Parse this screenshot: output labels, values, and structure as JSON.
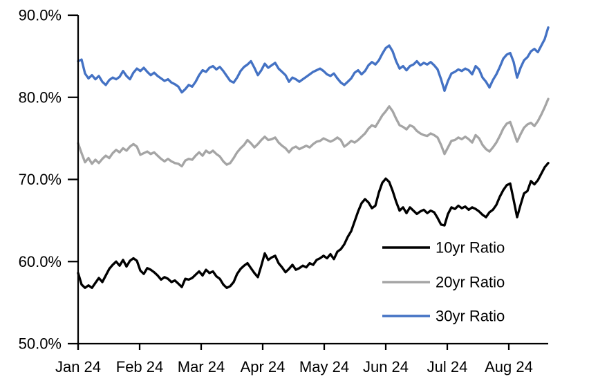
{
  "chart_data": {
    "type": "line",
    "title": "",
    "grid": false,
    "x_axis": {
      "tick_labels": [
        "Jan 24",
        "Feb 24",
        "Mar 24",
        "Apr 24",
        "May 24",
        "Jun 24",
        "Jul 24",
        "Aug 24"
      ]
    },
    "y_axis": {
      "tick_labels": [
        "90.0%",
        "80.0%",
        "70.0%",
        "60.0%",
        "50.0%"
      ],
      "tick_values": [
        90,
        80,
        70,
        60,
        50
      ],
      "range": [
        50,
        90
      ],
      "unit": "percent"
    },
    "legend": {
      "position": "inside-lower-right"
    },
    "sampling_note": "137 evenly spaced observations spanning Jan 2024 through late Aug 2024",
    "series": [
      {
        "name": "10yr Ratio",
        "color": "#000000",
        "values": [
          58.6,
          57.2,
          56.8,
          57.1,
          56.8,
          57.4,
          58.0,
          57.5,
          58.3,
          59.1,
          59.6,
          60.0,
          59.5,
          60.2,
          59.4,
          60.1,
          60.4,
          60.1,
          58.9,
          58.5,
          59.2,
          59.0,
          58.7,
          58.3,
          57.8,
          58.1,
          57.9,
          57.5,
          57.7,
          57.3,
          56.9,
          57.9,
          57.8,
          58.0,
          58.4,
          58.8,
          58.3,
          59.0,
          58.6,
          58.8,
          58.2,
          57.9,
          57.2,
          56.8,
          57.0,
          57.5,
          58.5,
          59.1,
          59.5,
          59.8,
          59.2,
          58.6,
          58.1,
          59.5,
          61.0,
          60.2,
          60.5,
          60.7,
          59.8,
          59.3,
          58.7,
          59.1,
          59.6,
          59.0,
          59.2,
          59.5,
          59.3,
          59.8,
          59.6,
          60.2,
          60.4,
          60.7,
          60.4,
          60.9,
          60.3,
          61.2,
          61.5,
          62.1,
          63.0,
          63.7,
          64.9,
          66.1,
          67.1,
          67.6,
          67.2,
          66.5,
          66.8,
          68.4,
          69.6,
          70.1,
          69.7,
          68.6,
          67.3,
          66.2,
          66.6,
          65.9,
          66.6,
          66.2,
          65.8,
          66.1,
          66.3,
          65.9,
          66.2,
          66.0,
          65.3,
          64.5,
          64.4,
          65.8,
          66.6,
          66.4,
          66.8,
          66.5,
          66.7,
          66.3,
          66.6,
          66.4,
          66.1,
          65.7,
          65.4,
          66.0,
          66.3,
          66.9,
          67.9,
          68.7,
          69.3,
          69.5,
          67.5,
          65.4,
          66.9,
          68.3,
          68.6,
          69.8,
          69.4,
          69.9,
          70.7,
          71.5,
          72.0
        ]
      },
      {
        "name": "20yr Ratio",
        "color": "#A5A5A5",
        "values": [
          74.4,
          73.2,
          72.1,
          72.6,
          71.9,
          72.4,
          72.0,
          72.5,
          72.9,
          72.6,
          73.2,
          73.6,
          73.3,
          73.8,
          73.5,
          74.0,
          74.3,
          74.0,
          73.0,
          73.2,
          73.4,
          73.1,
          73.3,
          72.9,
          72.5,
          72.2,
          72.5,
          72.2,
          72.0,
          71.9,
          71.6,
          72.3,
          72.5,
          72.4,
          72.9,
          73.3,
          72.9,
          73.5,
          73.2,
          73.5,
          73.1,
          72.8,
          72.2,
          71.8,
          72.0,
          72.6,
          73.3,
          73.8,
          74.2,
          74.8,
          74.4,
          73.9,
          74.3,
          74.8,
          75.2,
          74.8,
          74.9,
          75.1,
          74.5,
          74.1,
          73.8,
          73.3,
          73.8,
          74.0,
          73.7,
          73.9,
          74.1,
          73.9,
          74.3,
          74.6,
          74.7,
          75.0,
          74.8,
          74.6,
          74.8,
          75.1,
          74.8,
          74.0,
          74.3,
          74.7,
          74.5,
          74.8,
          75.2,
          75.6,
          76.2,
          76.6,
          76.4,
          77.1,
          77.8,
          78.3,
          78.9,
          78.3,
          77.4,
          76.6,
          76.4,
          76.1,
          76.6,
          76.4,
          75.9,
          75.6,
          75.4,
          75.3,
          75.6,
          75.4,
          75.1,
          74.2,
          73.1,
          73.9,
          74.7,
          74.8,
          75.1,
          74.9,
          75.2,
          74.9,
          74.5,
          75.4,
          75.0,
          74.2,
          73.7,
          73.4,
          73.9,
          74.5,
          75.3,
          76.2,
          76.8,
          77.0,
          75.8,
          74.6,
          75.5,
          76.3,
          76.7,
          76.9,
          76.5,
          77.1,
          77.9,
          78.8,
          79.8
        ]
      },
      {
        "name": "30yr Ratio",
        "color": "#4472C4",
        "values": [
          84.4,
          84.6,
          82.9,
          82.3,
          82.7,
          82.2,
          82.6,
          81.9,
          81.5,
          82.1,
          82.4,
          82.2,
          82.5,
          83.2,
          82.6,
          82.2,
          83.0,
          83.5,
          83.2,
          83.6,
          83.1,
          82.7,
          83.0,
          82.6,
          82.3,
          82.0,
          82.2,
          81.8,
          81.6,
          81.3,
          80.6,
          81.0,
          81.5,
          81.3,
          81.9,
          82.7,
          83.3,
          83.1,
          83.6,
          83.8,
          83.4,
          83.7,
          83.2,
          82.6,
          82.0,
          81.8,
          82.4,
          83.2,
          83.7,
          84.0,
          84.4,
          83.6,
          82.7,
          83.3,
          84.1,
          83.6,
          83.9,
          84.2,
          83.5,
          83.1,
          82.7,
          81.9,
          82.4,
          82.2,
          81.9,
          82.2,
          82.5,
          82.8,
          83.1,
          83.3,
          83.5,
          83.2,
          82.8,
          82.6,
          82.9,
          82.3,
          81.8,
          81.5,
          81.9,
          82.3,
          83.0,
          83.3,
          82.8,
          83.2,
          83.9,
          84.3,
          84.0,
          84.5,
          85.3,
          86.0,
          86.3,
          85.6,
          84.4,
          83.5,
          83.8,
          83.3,
          83.8,
          84.0,
          84.4,
          83.9,
          84.2,
          84.0,
          84.3,
          83.9,
          83.4,
          82.2,
          80.8,
          82.0,
          82.9,
          83.1,
          83.4,
          83.2,
          83.5,
          83.3,
          82.8,
          83.8,
          83.4,
          82.4,
          81.9,
          81.2,
          82.1,
          82.8,
          83.7,
          84.7,
          85.2,
          85.4,
          84.3,
          82.4,
          83.6,
          84.5,
          84.9,
          85.6,
          85.9,
          85.5,
          86.3,
          87.1,
          88.5
        ]
      }
    ]
  }
}
